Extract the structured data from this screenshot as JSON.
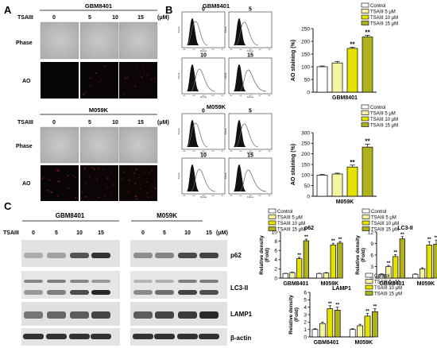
{
  "panels": {
    "A": "A",
    "B": "B",
    "C": "C"
  },
  "unit": "(μM)",
  "treatment": "TSAIII",
  "doses": [
    "0",
    "5",
    "10",
    "15"
  ],
  "cells": {
    "gbm": "GBM8401",
    "m059k": "M059K"
  },
  "rows": {
    "phase": "Phase",
    "ao": "AO"
  },
  "flow": {
    "ylabel": "Count",
    "xticks": [
      "10⁰",
      "10¹",
      "10²",
      "10³",
      "10⁴"
    ],
    "xlabel": "FL1-H"
  },
  "blot": {
    "markers": [
      "p62",
      "LC3-II",
      "LAMP1",
      "β-actin"
    ]
  },
  "legend": [
    "Control",
    "TSAIII 5 μM",
    "TSAIII 10 μM",
    "TSAIII 15 μM"
  ],
  "colors": [
    "#ffffff",
    "#f6f4a2",
    "#e5e100",
    "#aeb11c"
  ],
  "sig": "**",
  "chart_data": [
    {
      "type": "bar",
      "id": "ao-gbm",
      "xlabel": "GBM8401",
      "ylabel": "AO staining (%)",
      "yticks": [
        0,
        50,
        100,
        150,
        200,
        250
      ],
      "ylim": [
        0,
        250
      ],
      "groups": [
        {
          "label": "GBM8401",
          "values": [
            100,
            115,
            172,
            217
          ],
          "errors": [
            3,
            6,
            5,
            7
          ],
          "sig": [
            "",
            "",
            "**",
            "**"
          ]
        }
      ]
    },
    {
      "type": "bar",
      "id": "ao-m059k",
      "xlabel": "M059K",
      "ylabel": "AO staining (%)",
      "yticks": [
        0,
        50,
        100,
        150,
        200,
        250,
        300
      ],
      "ylim": [
        0,
        300
      ],
      "groups": [
        {
          "label": "M059K",
          "values": [
            100,
            105,
            138,
            232
          ],
          "errors": [
            3,
            4,
            9,
            14
          ],
          "sig": [
            "",
            "",
            "**",
            "**"
          ]
        }
      ]
    },
    {
      "type": "bar",
      "id": "p62",
      "title": "p62",
      "ylabel": "Relative density (Fold)",
      "yticks": [
        0,
        2,
        4,
        6,
        8,
        10
      ],
      "ylim": [
        0,
        10
      ],
      "groups": [
        {
          "label": "GBM8401",
          "values": [
            1,
            1.2,
            4.2,
            8.1
          ],
          "errors": [
            0.05,
            0.1,
            0.3,
            0.35
          ],
          "sig": [
            "",
            "",
            "**",
            "**"
          ]
        },
        {
          "label": "M059K",
          "values": [
            1,
            1.1,
            7.2,
            7.6
          ],
          "errors": [
            0.05,
            0.1,
            0.35,
            0.35
          ],
          "sig": [
            "",
            "",
            "**",
            "**"
          ]
        }
      ]
    },
    {
      "type": "bar",
      "id": "lc3",
      "title": "LC3-II",
      "ylabel": "Relative density (Fold)",
      "yticks": [
        0,
        3,
        6,
        9,
        12
      ],
      "ylim": [
        0,
        12
      ],
      "groups": [
        {
          "label": "GBM8401",
          "values": [
            1,
            3.0,
            5.6,
            10.2
          ],
          "errors": [
            0.1,
            0.3,
            0.5,
            0.6
          ],
          "sig": [
            "",
            "**",
            "**",
            "**"
          ]
        },
        {
          "label": "M059K",
          "values": [
            1,
            2.4,
            8.6,
            8.8
          ],
          "errors": [
            0.1,
            0.3,
            0.9,
            1.1
          ],
          "sig": [
            "",
            "",
            "**",
            "**"
          ]
        }
      ]
    },
    {
      "type": "bar",
      "id": "lamp1",
      "title": "LAMP1",
      "ylabel": "Relative density (Fold)",
      "yticks": [
        0,
        1,
        2,
        3,
        4,
        5,
        6
      ],
      "ylim": [
        0,
        6
      ],
      "groups": [
        {
          "label": "GBM8401",
          "values": [
            1,
            1.8,
            3.8,
            3.6
          ],
          "errors": [
            0.1,
            0.2,
            0.4,
            0.4
          ],
          "sig": [
            "",
            "",
            "**",
            "**"
          ]
        },
        {
          "label": "M059K",
          "values": [
            1,
            1.5,
            2.8,
            3.4
          ],
          "errors": [
            0.1,
            0.2,
            0.35,
            0.4
          ],
          "sig": [
            "",
            "",
            "**",
            "**"
          ]
        }
      ]
    }
  ]
}
